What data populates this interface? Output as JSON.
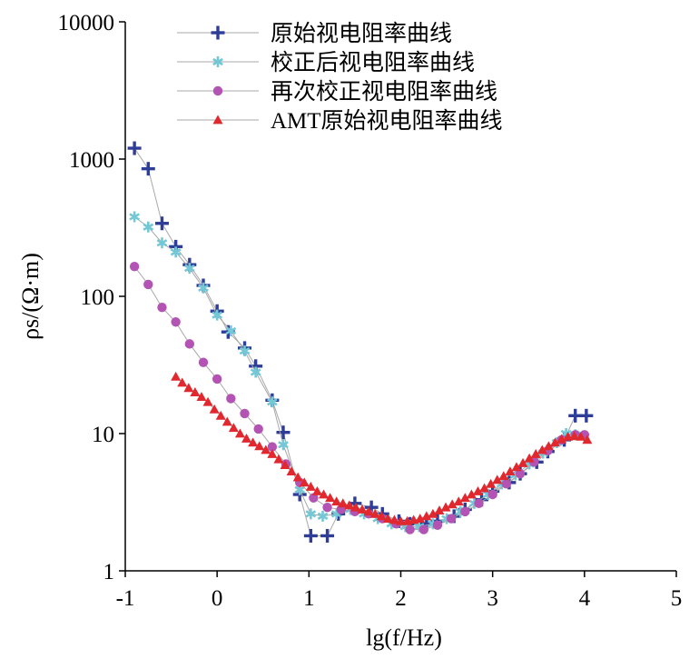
{
  "chart_data": {
    "type": "scatter",
    "xlabel": "lg(f/Hz)",
    "ylabel": "ρs/(Ω·m)",
    "xlim": [
      -1,
      5
    ],
    "ylim": [
      1,
      10000
    ],
    "yscale": "log",
    "x_ticks": [
      "-1",
      "0",
      "1",
      "2",
      "3",
      "4",
      "5"
    ],
    "y_ticks": [
      "1",
      "10",
      "100",
      "1000",
      "10000"
    ],
    "grid": false,
    "legend_placement": "top-right",
    "series": [
      {
        "name": "原始视电阻率曲线",
        "marker": "plus",
        "color": "#2e3d98",
        "line_color": "#a8a8a8",
        "x": [
          -0.9,
          -0.75,
          -0.6,
          -0.45,
          -0.3,
          -0.15,
          0.0,
          0.12,
          0.3,
          0.42,
          0.6,
          0.72,
          0.9,
          1.02,
          1.2,
          1.32,
          1.5,
          1.68,
          1.8,
          1.98,
          2.1,
          2.28,
          2.4,
          2.58,
          2.7,
          2.88,
          3.0,
          3.18,
          3.3,
          3.48,
          3.6,
          3.78,
          3.9,
          4.02
        ],
        "y": [
          1200,
          850,
          340,
          230,
          170,
          120,
          78,
          55,
          42,
          31,
          17.5,
          10.2,
          3.6,
          1.8,
          1.8,
          2.6,
          3.1,
          2.9,
          2.6,
          2.3,
          2.2,
          2.2,
          2.3,
          2.5,
          2.8,
          3.3,
          3.8,
          4.4,
          5.1,
          6.2,
          7.4,
          9.0,
          13.5,
          13.5
        ]
      },
      {
        "name": "校正后视电阻率曲线",
        "marker": "asterisk",
        "color": "#74c8d6",
        "line_color": "#a8a8a8",
        "x": [
          -0.9,
          -0.75,
          -0.6,
          -0.45,
          -0.3,
          -0.15,
          0.0,
          0.15,
          0.3,
          0.42,
          0.6,
          0.72,
          0.9,
          1.02,
          1.15,
          1.3,
          1.45,
          1.6,
          1.75,
          1.9,
          2.05,
          2.2,
          2.35,
          2.5,
          2.65,
          2.8,
          2.95,
          3.1,
          3.25,
          3.4,
          3.55,
          3.7,
          3.8,
          3.9,
          4.0
        ],
        "y": [
          380,
          320,
          245,
          210,
          160,
          115,
          73,
          56,
          40,
          28,
          17,
          8.3,
          3.9,
          2.6,
          2.5,
          2.6,
          2.8,
          2.6,
          2.4,
          2.2,
          2.1,
          2.1,
          2.2,
          2.4,
          2.7,
          3.1,
          3.6,
          4.3,
          5.0,
          6.0,
          7.2,
          8.6,
          10.0,
          9.8,
          9.5
        ]
      },
      {
        "name": "再次校正视电阻率曲线",
        "marker": "circle",
        "color": "#b353b3",
        "line_color": "#a8a8a8",
        "x": [
          -0.9,
          -0.75,
          -0.6,
          -0.45,
          -0.3,
          -0.15,
          0.0,
          0.15,
          0.3,
          0.45,
          0.6,
          0.75,
          0.9,
          1.05,
          1.2,
          1.35,
          1.5,
          1.65,
          1.8,
          1.95,
          2.1,
          2.25,
          2.4,
          2.55,
          2.7,
          2.85,
          3.0,
          3.15,
          3.3,
          3.45,
          3.6,
          3.75,
          3.9,
          4.0
        ],
        "y": [
          165,
          122,
          83,
          65,
          45,
          33,
          25,
          18,
          14,
          10.8,
          8.0,
          6.0,
          4.4,
          3.4,
          2.9,
          2.8,
          2.7,
          2.6,
          2.4,
          2.2,
          2.0,
          2.0,
          2.15,
          2.4,
          2.7,
          3.1,
          3.6,
          4.3,
          5.1,
          6.2,
          7.5,
          9.0,
          9.8,
          9.8
        ]
      },
      {
        "name": "AMT原始视电阻率曲线",
        "marker": "triangle",
        "color": "#e0282e",
        "line_color": "#a8a8a8",
        "x": [
          -0.45,
          -0.38,
          -0.31,
          -0.24,
          -0.17,
          -0.1,
          -0.03,
          0.04,
          0.11,
          0.18,
          0.25,
          0.32,
          0.39,
          0.46,
          0.53,
          0.6,
          0.67,
          0.74,
          0.81,
          0.88,
          0.95,
          1.02,
          1.09,
          1.16,
          1.23,
          1.3,
          1.37,
          1.44,
          1.51,
          1.58,
          1.65,
          1.72,
          1.79,
          1.86,
          1.93,
          2.0,
          2.07,
          2.14,
          2.21,
          2.28,
          2.35,
          2.42,
          2.49,
          2.56,
          2.63,
          2.7,
          2.77,
          2.84,
          2.91,
          2.98,
          3.05,
          3.12,
          3.19,
          3.26,
          3.33,
          3.4,
          3.47,
          3.54,
          3.61,
          3.68,
          3.75,
          3.82,
          3.89,
          3.96,
          4.03
        ],
        "y": [
          26,
          23.5,
          21.5,
          20,
          18.5,
          17,
          15,
          13.5,
          12.2,
          11,
          10,
          9.2,
          8.6,
          8.1,
          7.6,
          7.1,
          6.5,
          5.9,
          5.3,
          4.8,
          4.4,
          4.1,
          3.8,
          3.6,
          3.4,
          3.2,
          3.1,
          3.0,
          2.9,
          2.8,
          2.7,
          2.6,
          2.5,
          2.4,
          2.35,
          2.3,
          2.3,
          2.35,
          2.4,
          2.5,
          2.6,
          2.75,
          2.9,
          3.05,
          3.2,
          3.4,
          3.6,
          3.8,
          4.0,
          4.3,
          4.6,
          4.9,
          5.3,
          5.7,
          6.1,
          6.6,
          7.1,
          7.6,
          8.1,
          8.6,
          9.1,
          9.5,
          9.6,
          9.5,
          9.0
        ]
      }
    ]
  }
}
